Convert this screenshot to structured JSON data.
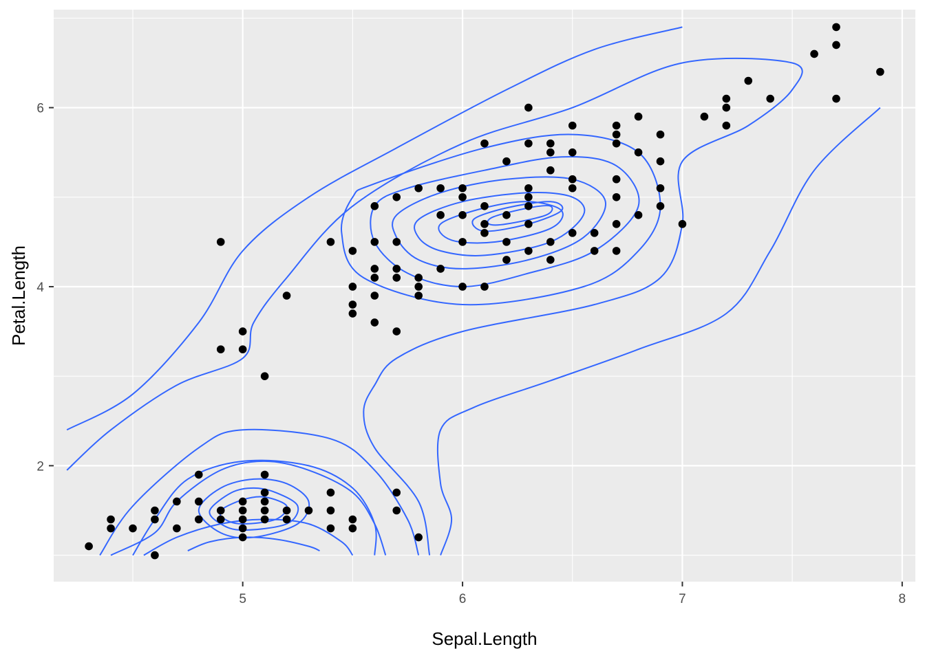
{
  "chart_data": {
    "type": "scatter",
    "title": "",
    "xlabel": "Sepal.Length",
    "ylabel": "Petal.Length",
    "xlim": [
      4.14,
      8.06
    ],
    "ylim": [
      0.705,
      7.095
    ],
    "x_ticks": [
      5,
      6,
      7,
      8
    ],
    "y_ticks": [
      2,
      4,
      6
    ],
    "x_tick_labels": [
      "5",
      "6",
      "7",
      "8"
    ],
    "y_tick_labels": [
      "2",
      "4",
      "6"
    ],
    "x_minor": [
      4.5,
      5.5,
      6.5,
      7.5
    ],
    "y_minor": [
      1,
      3,
      5,
      7
    ],
    "grid": true,
    "colors": {
      "panel": "#ebebeb",
      "grid": "#ffffff",
      "points": "#000000",
      "contour": "#3366ff"
    },
    "points": [
      [
        4.3,
        1.1
      ],
      [
        4.4,
        1.3
      ],
      [
        4.4,
        1.4
      ],
      [
        4.5,
        1.3
      ],
      [
        4.6,
        1.0
      ],
      [
        4.6,
        1.4
      ],
      [
        4.6,
        1.5
      ],
      [
        4.7,
        1.3
      ],
      [
        4.7,
        1.6
      ],
      [
        4.8,
        1.4
      ],
      [
        4.8,
        1.6
      ],
      [
        4.8,
        1.9
      ],
      [
        4.9,
        1.4
      ],
      [
        4.9,
        1.5
      ],
      [
        4.9,
        3.3
      ],
      [
        4.9,
        4.5
      ],
      [
        5.0,
        1.2
      ],
      [
        5.0,
        1.3
      ],
      [
        5.0,
        1.4
      ],
      [
        5.0,
        1.5
      ],
      [
        5.0,
        1.6
      ],
      [
        5.0,
        3.3
      ],
      [
        5.0,
        3.5
      ],
      [
        5.1,
        1.4
      ],
      [
        5.1,
        1.5
      ],
      [
        5.1,
        1.6
      ],
      [
        5.1,
        1.7
      ],
      [
        5.1,
        1.9
      ],
      [
        5.1,
        3.0
      ],
      [
        5.2,
        1.4
      ],
      [
        5.2,
        1.5
      ],
      [
        5.2,
        3.9
      ],
      [
        5.3,
        1.5
      ],
      [
        5.4,
        1.3
      ],
      [
        5.4,
        1.5
      ],
      [
        5.4,
        1.7
      ],
      [
        5.4,
        4.5
      ],
      [
        5.5,
        1.3
      ],
      [
        5.5,
        1.4
      ],
      [
        5.5,
        3.7
      ],
      [
        5.5,
        3.8
      ],
      [
        5.5,
        4.0
      ],
      [
        5.5,
        4.4
      ],
      [
        5.6,
        3.6
      ],
      [
        5.6,
        3.9
      ],
      [
        5.6,
        4.1
      ],
      [
        5.6,
        4.2
      ],
      [
        5.6,
        4.5
      ],
      [
        5.6,
        4.9
      ],
      [
        5.7,
        1.5
      ],
      [
        5.7,
        1.7
      ],
      [
        5.7,
        3.5
      ],
      [
        5.7,
        4.1
      ],
      [
        5.7,
        4.2
      ],
      [
        5.7,
        4.5
      ],
      [
        5.7,
        5.0
      ],
      [
        5.8,
        1.2
      ],
      [
        5.8,
        3.9
      ],
      [
        5.8,
        4.0
      ],
      [
        5.8,
        4.1
      ],
      [
        5.8,
        5.1
      ],
      [
        5.9,
        4.2
      ],
      [
        5.9,
        4.8
      ],
      [
        5.9,
        5.1
      ],
      [
        6.0,
        4.0
      ],
      [
        6.0,
        4.5
      ],
      [
        6.0,
        4.8
      ],
      [
        6.0,
        5.0
      ],
      [
        6.0,
        5.1
      ],
      [
        6.1,
        4.0
      ],
      [
        6.1,
        4.6
      ],
      [
        6.1,
        4.7
      ],
      [
        6.1,
        4.9
      ],
      [
        6.1,
        5.6
      ],
      [
        6.2,
        4.3
      ],
      [
        6.2,
        4.5
      ],
      [
        6.2,
        4.8
      ],
      [
        6.2,
        5.4
      ],
      [
        6.3,
        4.4
      ],
      [
        6.3,
        4.7
      ],
      [
        6.3,
        4.9
      ],
      [
        6.3,
        5.0
      ],
      [
        6.3,
        5.1
      ],
      [
        6.3,
        5.6
      ],
      [
        6.3,
        6.0
      ],
      [
        6.4,
        4.3
      ],
      [
        6.4,
        4.5
      ],
      [
        6.4,
        5.3
      ],
      [
        6.4,
        5.5
      ],
      [
        6.4,
        5.6
      ],
      [
        6.5,
        4.6
      ],
      [
        6.5,
        5.1
      ],
      [
        6.5,
        5.2
      ],
      [
        6.5,
        5.5
      ],
      [
        6.5,
        5.8
      ],
      [
        6.6,
        4.4
      ],
      [
        6.6,
        4.6
      ],
      [
        6.7,
        4.4
      ],
      [
        6.7,
        4.7
      ],
      [
        6.7,
        5.0
      ],
      [
        6.7,
        5.2
      ],
      [
        6.7,
        5.6
      ],
      [
        6.7,
        5.7
      ],
      [
        6.7,
        5.8
      ],
      [
        6.8,
        4.8
      ],
      [
        6.8,
        5.5
      ],
      [
        6.8,
        5.9
      ],
      [
        6.9,
        4.9
      ],
      [
        6.9,
        5.1
      ],
      [
        6.9,
        5.4
      ],
      [
        6.9,
        5.7
      ],
      [
        7.0,
        4.7
      ],
      [
        7.1,
        5.9
      ],
      [
        7.2,
        5.8
      ],
      [
        7.2,
        6.0
      ],
      [
        7.2,
        6.1
      ],
      [
        7.3,
        6.3
      ],
      [
        7.4,
        6.1
      ],
      [
        7.6,
        6.6
      ],
      [
        7.7,
        6.1
      ],
      [
        7.7,
        6.7
      ],
      [
        7.7,
        6.9
      ],
      [
        7.9,
        6.4
      ]
    ],
    "contours": [
      {
        "closed": true,
        "points": [
          [
            5.5,
            5.0
          ],
          [
            5.6,
            5.15
          ],
          [
            6.1,
            5.55
          ],
          [
            6.5,
            5.7
          ],
          [
            6.8,
            5.5
          ],
          [
            6.9,
            4.9
          ],
          [
            6.8,
            4.4
          ],
          [
            6.55,
            4.0
          ],
          [
            6.0,
            3.8
          ],
          [
            5.55,
            4.1
          ],
          [
            5.45,
            4.6
          ]
        ]
      },
      {
        "closed": true,
        "points": [
          [
            5.6,
            4.9
          ],
          [
            5.75,
            5.1
          ],
          [
            6.1,
            5.3
          ],
          [
            6.45,
            5.45
          ],
          [
            6.7,
            5.35
          ],
          [
            6.8,
            4.9
          ],
          [
            6.6,
            4.4
          ],
          [
            6.3,
            4.15
          ],
          [
            6.0,
            4.0
          ],
          [
            5.75,
            4.15
          ],
          [
            5.6,
            4.5
          ]
        ]
      },
      {
        "closed": true,
        "points": [
          [
            5.7,
            4.8
          ],
          [
            5.9,
            5.05
          ],
          [
            6.2,
            5.2
          ],
          [
            6.5,
            5.2
          ],
          [
            6.65,
            4.95
          ],
          [
            6.55,
            4.55
          ],
          [
            6.3,
            4.3
          ],
          [
            6.0,
            4.2
          ],
          [
            5.8,
            4.3
          ],
          [
            5.7,
            4.55
          ]
        ]
      },
      {
        "closed": true,
        "points": [
          [
            5.8,
            4.75
          ],
          [
            6.0,
            4.95
          ],
          [
            6.3,
            5.05
          ],
          [
            6.5,
            5.0
          ],
          [
            6.55,
            4.8
          ],
          [
            6.4,
            4.5
          ],
          [
            6.1,
            4.35
          ],
          [
            5.9,
            4.4
          ],
          [
            5.8,
            4.55
          ]
        ]
      },
      {
        "closed": true,
        "points": [
          [
            5.9,
            4.7
          ],
          [
            6.1,
            4.88
          ],
          [
            6.3,
            4.95
          ],
          [
            6.45,
            4.85
          ],
          [
            6.4,
            4.65
          ],
          [
            6.15,
            4.5
          ],
          [
            5.95,
            4.52
          ]
        ]
      },
      {
        "closed": true,
        "points": [
          [
            6.05,
            4.75
          ],
          [
            6.2,
            4.88
          ],
          [
            6.4,
            4.95
          ],
          [
            6.45,
            4.85
          ],
          [
            6.3,
            4.7
          ],
          [
            6.1,
            4.62
          ]
        ]
      },
      {
        "closed": true,
        "points": [
          [
            6.14,
            4.78
          ],
          [
            6.3,
            4.88
          ],
          [
            6.4,
            4.9
          ],
          [
            6.38,
            4.8
          ],
          [
            6.2,
            4.7
          ],
          [
            6.12,
            4.7
          ]
        ]
      },
      {
        "closed": false,
        "points": [
          [
            4.4,
            1.0
          ],
          [
            4.6,
            1.25
          ],
          [
            4.7,
            1.6
          ],
          [
            4.9,
            1.95
          ],
          [
            5.1,
            2.05
          ],
          [
            5.3,
            1.95
          ],
          [
            5.5,
            1.7
          ],
          [
            5.6,
            1.35
          ],
          [
            5.65,
            1.0
          ]
        ]
      },
      {
        "closed": false,
        "points": [
          [
            4.2,
            1.95
          ],
          [
            4.4,
            2.4
          ],
          [
            4.7,
            2.9
          ],
          [
            5.0,
            3.2
          ],
          [
            5.05,
            3.6
          ],
          [
            5.2,
            4.1
          ],
          [
            5.5,
            4.9
          ],
          [
            6.0,
            5.6
          ],
          [
            6.5,
            6.0
          ],
          [
            7.0,
            6.5
          ],
          [
            7.5,
            6.5
          ],
          [
            7.5,
            6.2
          ],
          [
            7.3,
            5.8
          ],
          [
            7.0,
            5.4
          ],
          [
            7.0,
            4.7
          ],
          [
            6.9,
            4.1
          ],
          [
            6.6,
            3.8
          ],
          [
            6.0,
            3.5
          ],
          [
            5.7,
            3.2
          ],
          [
            5.6,
            2.9
          ],
          [
            5.55,
            2.6
          ],
          [
            5.6,
            2.2
          ],
          [
            5.8,
            1.6
          ],
          [
            5.85,
            1.0
          ]
        ]
      },
      {
        "closed": false,
        "points": [
          [
            4.2,
            2.4
          ],
          [
            4.5,
            2.8
          ],
          [
            4.8,
            3.6
          ],
          [
            5.0,
            4.4
          ],
          [
            5.3,
            5.0
          ],
          [
            5.7,
            5.55
          ],
          [
            6.2,
            6.2
          ],
          [
            6.6,
            6.65
          ],
          [
            7.0,
            6.9
          ]
        ]
      },
      {
        "closed": false,
        "points": [
          [
            5.9,
            1.0
          ],
          [
            5.95,
            1.4
          ],
          [
            5.9,
            1.8
          ],
          [
            5.9,
            2.4
          ],
          [
            6.05,
            2.65
          ],
          [
            6.4,
            2.95
          ],
          [
            6.8,
            3.3
          ],
          [
            7.2,
            3.7
          ],
          [
            7.4,
            4.4
          ],
          [
            7.6,
            5.3
          ],
          [
            7.9,
            6.0
          ]
        ]
      },
      {
        "closed": false,
        "points": [
          [
            4.55,
            1.0
          ],
          [
            4.7,
            1.2
          ],
          [
            4.9,
            1.35
          ],
          [
            5.1,
            1.4
          ],
          [
            5.3,
            1.35
          ],
          [
            5.45,
            1.15
          ],
          [
            5.5,
            1.0
          ]
        ]
      },
      {
        "closed": false,
        "points": [
          [
            4.75,
            1.05
          ],
          [
            4.85,
            1.15
          ],
          [
            5.0,
            1.2
          ],
          [
            5.15,
            1.18
          ],
          [
            5.3,
            1.1
          ],
          [
            5.35,
            1.05
          ]
        ]
      },
      {
        "closed": true,
        "points": [
          [
            4.8,
            1.5
          ],
          [
            4.9,
            1.75
          ],
          [
            5.05,
            1.85
          ],
          [
            5.2,
            1.8
          ],
          [
            5.3,
            1.6
          ],
          [
            5.25,
            1.35
          ],
          [
            5.05,
            1.2
          ],
          [
            4.9,
            1.25
          ]
        ]
      },
      {
        "closed": true,
        "points": [
          [
            4.85,
            1.5
          ],
          [
            4.95,
            1.7
          ],
          [
            5.05,
            1.75
          ],
          [
            5.15,
            1.7
          ],
          [
            5.25,
            1.55
          ],
          [
            5.2,
            1.35
          ],
          [
            5.0,
            1.28
          ],
          [
            4.9,
            1.35
          ]
        ]
      },
      {
        "closed": true,
        "points": [
          [
            4.9,
            1.5
          ],
          [
            5.0,
            1.62
          ],
          [
            5.1,
            1.65
          ],
          [
            5.2,
            1.55
          ],
          [
            5.15,
            1.4
          ],
          [
            5.0,
            1.35
          ],
          [
            4.92,
            1.4
          ]
        ]
      },
      {
        "closed": false,
        "points": [
          [
            4.5,
            1.0
          ],
          [
            4.6,
            1.4
          ],
          [
            4.75,
            1.85
          ],
          [
            5.0,
            2.05
          ],
          [
            5.3,
            2.0
          ],
          [
            5.5,
            1.75
          ],
          [
            5.6,
            1.35
          ],
          [
            5.6,
            1.0
          ]
        ]
      },
      {
        "closed": false,
        "points": [
          [
            4.35,
            1.0
          ],
          [
            4.5,
            1.55
          ],
          [
            4.8,
            2.2
          ],
          [
            5.0,
            2.4
          ],
          [
            5.4,
            2.3
          ],
          [
            5.6,
            1.95
          ],
          [
            5.75,
            1.4
          ],
          [
            5.8,
            1.0
          ]
        ]
      }
    ]
  }
}
